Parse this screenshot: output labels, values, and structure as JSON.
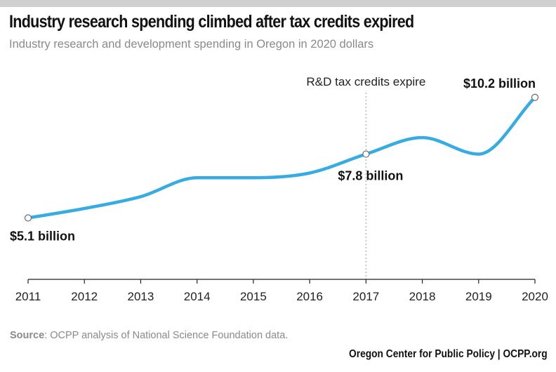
{
  "title": "Industry research spending climbed after tax credits expired",
  "subtitle": "Industry research and development spending in Oregon in 2020 dollars",
  "source_label": "Source",
  "source_text": ": OCPP analysis of National Science Foundation data.",
  "credit": "Oregon Center for Public Policy | OCPP.org",
  "colors": {
    "line": "#36ace2",
    "axis": "#222222",
    "annotation_line": "#c8c8c8"
  },
  "chart_data": {
    "type": "line",
    "title": "Industry research spending climbed after tax credits expired",
    "subtitle": "Industry research and development spending in Oregon in 2020 dollars",
    "xlabel": "",
    "ylabel": "",
    "x": [
      2011,
      2012,
      2013,
      2014,
      2015,
      2016,
      2017,
      2018,
      2019,
      2020
    ],
    "series": [
      {
        "values": [
          5.1,
          5.5,
          6.0,
          6.8,
          6.8,
          7.0,
          7.8,
          8.5,
          7.8,
          10.2
        ]
      }
    ],
    "ylim": [
      2.5,
      11.5
    ],
    "grid": false,
    "markers": [
      {
        "x": 2011,
        "y": 5.1,
        "label": "$5.1 billion"
      },
      {
        "x": 2017,
        "y": 7.8,
        "label": "$7.8 billion"
      },
      {
        "x": 2020,
        "y": 10.2,
        "label": "$10.2 billion"
      }
    ],
    "annotation": {
      "x": 2017,
      "text": "R&D tax credits expire"
    }
  }
}
